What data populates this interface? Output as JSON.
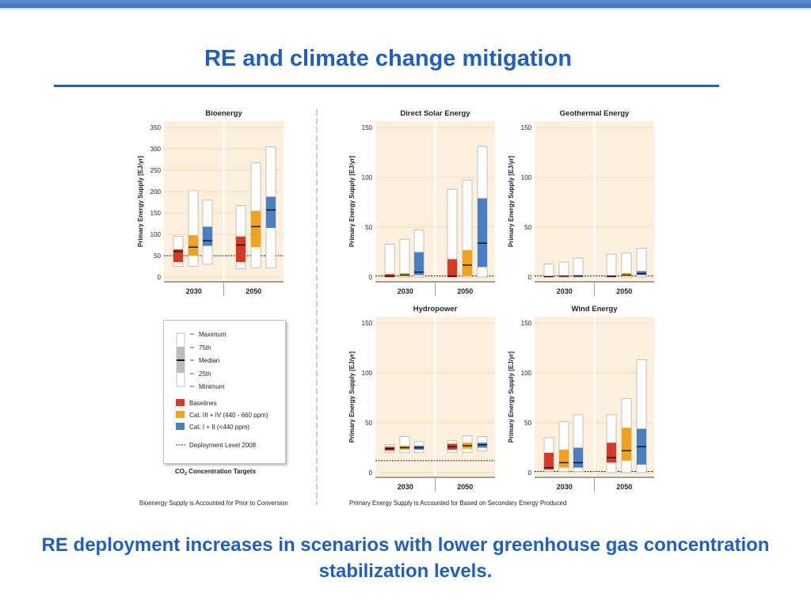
{
  "slide": {
    "title": "RE and climate change mitigation",
    "subtitle": "RE deployment increases in scenarios with lower greenhouse gas concentration stabilization levels."
  },
  "colors": {
    "title_blue": "#1f5fbf",
    "panel_bg": "#fcf0dc",
    "baselines": "#d63a27",
    "cat_3_4": "#eea21d",
    "cat_1_2": "#4a7fc1"
  },
  "figure": {
    "ylabel": "Primary Energy Supply [EJ/yr]",
    "notes": {
      "left": "Bioenergy Supply is Accounted for Prior to Conversion",
      "right": "Primary Energy Supply is Accounted for Based on Secondary Energy Produced"
    }
  },
  "legend": {
    "stats": [
      "Maximum",
      "75th",
      "Median",
      "25th",
      "Minimum"
    ],
    "categories": [
      "Baselines",
      "Cat. III + IV (440 - 660 ppm)",
      "Cat. I + II (<440 ppm)"
    ],
    "deployment": "Deployment Level 2008",
    "targets_label": "CO",
    "targets_sub": "2",
    "targets_rest": " Concentration Targets"
  },
  "chart_data": [
    {
      "type": "boxplot",
      "title": "Bioenergy",
      "ylabel": "Primary Energy Supply [EJ/yr]",
      "ylim": [
        0,
        350
      ],
      "yticks": [
        0,
        50,
        100,
        150,
        200,
        250,
        300,
        350
      ],
      "deployment_2008": 50,
      "groups": [
        "2030",
        "2050"
      ],
      "series": [
        "Baselines",
        "Cat. III + IV (440 - 660 ppm)",
        "Cat. I + II (<440 ppm)"
      ],
      "boxes": [
        {
          "group": "2030",
          "series": "Baselines",
          "min": 25,
          "q1": 35,
          "median": 60,
          "q3": 65,
          "max": 95
        },
        {
          "group": "2030",
          "series": "Cat. III + IV (440 - 660 ppm)",
          "min": 25,
          "q1": 50,
          "median": 70,
          "q3": 98,
          "max": 202
        },
        {
          "group": "2030",
          "series": "Cat. I + II (<440 ppm)",
          "min": 30,
          "q1": 73,
          "median": 85,
          "q3": 118,
          "max": 180
        },
        {
          "group": "2050",
          "series": "Baselines",
          "min": 20,
          "q1": 35,
          "median": 75,
          "q3": 95,
          "max": 167
        },
        {
          "group": "2050",
          "series": "Cat. III + IV (440 - 660 ppm)",
          "min": 22,
          "q1": 70,
          "median": 118,
          "q3": 155,
          "max": 267
        },
        {
          "group": "2050",
          "series": "Cat. I + II (<440 ppm)",
          "min": 22,
          "q1": 115,
          "median": 157,
          "q3": 188,
          "max": 305
        }
      ]
    },
    {
      "type": "boxplot",
      "title": "Direct Solar Energy",
      "ylabel": "Primary Energy Supply [EJ/yr]",
      "ylim": [
        0,
        150
      ],
      "yticks": [
        0,
        50,
        100,
        150
      ],
      "deployment_2008": 0,
      "groups": [
        "2030",
        "2050"
      ],
      "series": [
        "Baselines",
        "Cat. III + IV (440 - 660 ppm)",
        "Cat. I + II (<440 ppm)"
      ],
      "boxes": [
        {
          "group": "2030",
          "series": "Baselines",
          "min": 0,
          "q1": 0,
          "median": 1,
          "q3": 3,
          "max": 33
        },
        {
          "group": "2030",
          "series": "Cat. III + IV (440 - 660 ppm)",
          "min": 0,
          "q1": 1,
          "median": 2,
          "q3": 4,
          "max": 38
        },
        {
          "group": "2030",
          "series": "Cat. I + II (<440 ppm)",
          "min": 0,
          "q1": 2,
          "median": 5,
          "q3": 25,
          "max": 47
        },
        {
          "group": "2050",
          "series": "Baselines",
          "min": 0,
          "q1": 0,
          "median": 1,
          "q3": 18,
          "max": 88
        },
        {
          "group": "2050",
          "series": "Cat. III + IV (440 - 660 ppm)",
          "min": 0,
          "q1": 1,
          "median": 12,
          "q3": 27,
          "max": 97
        },
        {
          "group": "2050",
          "series": "Cat. I + II (<440 ppm)",
          "min": 0,
          "q1": 10,
          "median": 34,
          "q3": 79,
          "max": 131
        }
      ]
    },
    {
      "type": "boxplot",
      "title": "Geothermal Energy",
      "ylabel": "Primary Energy Supply [EJ/yr]",
      "ylim": [
        0,
        150
      ],
      "yticks": [
        0,
        50,
        100,
        150
      ],
      "deployment_2008": 0,
      "groups": [
        "2030",
        "2050"
      ],
      "series": [
        "Baselines",
        "Cat. III + IV (440 - 660 ppm)",
        "Cat. I + II (<440 ppm)"
      ],
      "boxes": [
        {
          "group": "2030",
          "series": "Baselines",
          "min": 0,
          "q1": 0,
          "median": 0.5,
          "q3": 1,
          "max": 13
        },
        {
          "group": "2030",
          "series": "Cat. III + IV (440 - 660 ppm)",
          "min": 0,
          "q1": 0.5,
          "median": 1,
          "q3": 1.5,
          "max": 15
        },
        {
          "group": "2030",
          "series": "Cat. I + II (<440 ppm)",
          "min": 0,
          "q1": 0.5,
          "median": 1,
          "q3": 2,
          "max": 19
        },
        {
          "group": "2050",
          "series": "Baselines",
          "min": 0,
          "q1": 0,
          "median": 1,
          "q3": 1.5,
          "max": 23
        },
        {
          "group": "2050",
          "series": "Cat. III + IV (440 - 660 ppm)",
          "min": 0,
          "q1": 1,
          "median": 2,
          "q3": 4,
          "max": 24
        },
        {
          "group": "2050",
          "series": "Cat. I + II (<440 ppm)",
          "min": 0,
          "q1": 2,
          "median": 3.5,
          "q3": 6,
          "max": 29
        }
      ]
    },
    {
      "type": "boxplot",
      "title": "Hydropower",
      "ylabel": "Primary Energy Supply [EJ/yr]",
      "ylim": [
        0,
        150
      ],
      "yticks": [
        0,
        50,
        100,
        150
      ],
      "deployment_2008": 12,
      "groups": [
        "2030",
        "2050"
      ],
      "series": [
        "Baselines",
        "Cat. III + IV (440 - 660 ppm)",
        "Cat. I + II (<440 ppm)"
      ],
      "boxes": [
        {
          "group": "2030",
          "series": "Baselines",
          "min": 20,
          "q1": 22,
          "median": 24,
          "q3": 26,
          "max": 28
        },
        {
          "group": "2030",
          "series": "Cat. III + IV (440 - 660 ppm)",
          "min": 20,
          "q1": 23,
          "median": 25,
          "q3": 27,
          "max": 36
        },
        {
          "group": "2030",
          "series": "Cat. I + II (<440 ppm)",
          "min": 20,
          "q1": 23,
          "median": 25,
          "q3": 27,
          "max": 31
        },
        {
          "group": "2050",
          "series": "Baselines",
          "min": 20,
          "q1": 23,
          "median": 26,
          "q3": 29,
          "max": 32
        },
        {
          "group": "2050",
          "series": "Cat. III + IV (440 - 660 ppm)",
          "min": 20,
          "q1": 24,
          "median": 27,
          "q3": 30,
          "max": 37
        },
        {
          "group": "2050",
          "series": "Cat. I + II (<440 ppm)",
          "min": 22,
          "q1": 25,
          "median": 28,
          "q3": 30,
          "max": 36
        }
      ]
    },
    {
      "type": "boxplot",
      "title": "Wind Energy",
      "ylabel": "Primary Energy Supply [EJ/yr]",
      "ylim": [
        0,
        150
      ],
      "yticks": [
        0,
        50,
        100,
        150
      ],
      "deployment_2008": 0,
      "groups": [
        "2030",
        "2050"
      ],
      "series": [
        "Baselines",
        "Cat. III + IV (440 - 660 ppm)",
        "Cat. I + II (<440 ppm)"
      ],
      "boxes": [
        {
          "group": "2030",
          "series": "Baselines",
          "min": 1,
          "q1": 3,
          "median": 5,
          "q3": 20,
          "max": 35
        },
        {
          "group": "2030",
          "series": "Cat. III + IV (440 - 660 ppm)",
          "min": 1,
          "q1": 5,
          "median": 10,
          "q3": 23,
          "max": 51
        },
        {
          "group": "2030",
          "series": "Cat. I + II (<440 ppm)",
          "min": 1,
          "q1": 5,
          "median": 10,
          "q3": 25,
          "max": 58
        },
        {
          "group": "2050",
          "series": "Baselines",
          "min": 0,
          "q1": 10,
          "median": 15,
          "q3": 30,
          "max": 58
        },
        {
          "group": "2050",
          "series": "Cat. III + IV (440 - 660 ppm)",
          "min": 0,
          "q1": 12,
          "median": 22,
          "q3": 45,
          "max": 74
        },
        {
          "group": "2050",
          "series": "Cat. I + II (<440 ppm)",
          "min": 0,
          "q1": 8,
          "median": 26,
          "q3": 44,
          "max": 113
        }
      ]
    }
  ]
}
